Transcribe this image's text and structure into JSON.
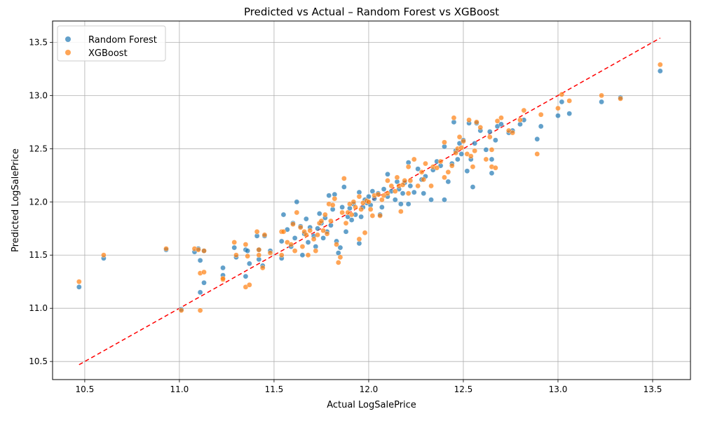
{
  "chart_data": {
    "type": "scatter",
    "title": "Predicted vs Actual – Random Forest vs XGBoost",
    "xlabel": "Actual LogSalePrice",
    "ylabel": "Predicted LogSalePrice",
    "xlim": [
      10.33,
      13.7
    ],
    "ylim": [
      10.33,
      13.7
    ],
    "xticks": [
      10.5,
      11.0,
      11.5,
      12.0,
      12.5,
      13.0,
      13.5
    ],
    "yticks": [
      10.5,
      11.0,
      11.5,
      12.0,
      12.5,
      13.0,
      13.5
    ],
    "grid": true,
    "legend_position": "top-left",
    "reference_line": {
      "from": [
        10.47,
        10.47
      ],
      "to": [
        13.54,
        13.54
      ],
      "style": "dashed",
      "color": "#ff0000"
    },
    "series": [
      {
        "name": "Random Forest",
        "color": "#1f77b4",
        "points": [
          [
            10.47,
            11.2
          ],
          [
            10.6,
            11.47
          ],
          [
            10.93,
            11.55
          ],
          [
            11.01,
            10.99
          ],
          [
            11.08,
            11.53
          ],
          [
            11.1,
            11.56
          ],
          [
            11.11,
            11.45
          ],
          [
            11.11,
            11.15
          ],
          [
            11.13,
            11.24
          ],
          [
            11.13,
            11.54
          ],
          [
            11.23,
            11.38
          ],
          [
            11.23,
            11.31
          ],
          [
            11.29,
            11.57
          ],
          [
            11.3,
            11.48
          ],
          [
            11.35,
            11.3
          ],
          [
            11.35,
            11.55
          ],
          [
            11.36,
            11.54
          ],
          [
            11.37,
            11.42
          ],
          [
            11.41,
            11.68
          ],
          [
            11.42,
            11.46
          ],
          [
            11.42,
            11.55
          ],
          [
            11.44,
            11.4
          ],
          [
            11.45,
            11.68
          ],
          [
            11.48,
            11.54
          ],
          [
            11.54,
            11.63
          ],
          [
            11.54,
            11.47
          ],
          [
            11.55,
            11.88
          ],
          [
            11.57,
            11.74
          ],
          [
            11.59,
            11.58
          ],
          [
            11.6,
            11.8
          ],
          [
            11.61,
            11.66
          ],
          [
            11.62,
            12.0
          ],
          [
            11.64,
            11.77
          ],
          [
            11.65,
            11.5
          ],
          [
            11.66,
            11.7
          ],
          [
            11.67,
            11.84
          ],
          [
            11.68,
            11.62
          ],
          [
            11.69,
            11.76
          ],
          [
            11.71,
            11.68
          ],
          [
            11.72,
            11.58
          ],
          [
            11.73,
            11.75
          ],
          [
            11.74,
            11.89
          ],
          [
            11.75,
            11.8
          ],
          [
            11.76,
            11.66
          ],
          [
            11.77,
            11.85
          ],
          [
            11.78,
            11.72
          ],
          [
            11.79,
            12.06
          ],
          [
            11.8,
            11.78
          ],
          [
            11.81,
            11.93
          ],
          [
            11.82,
            12.07
          ],
          [
            11.83,
            11.63
          ],
          [
            11.84,
            11.52
          ],
          [
            11.85,
            11.57
          ],
          [
            11.86,
            11.95
          ],
          [
            11.87,
            12.14
          ],
          [
            11.88,
            11.72
          ],
          [
            11.89,
            11.86
          ],
          [
            11.9,
            11.94
          ],
          [
            11.91,
            11.83
          ],
          [
            11.92,
            11.98
          ],
          [
            11.93,
            11.88
          ],
          [
            11.95,
            11.61
          ],
          [
            11.95,
            12.09
          ],
          [
            11.96,
            11.86
          ],
          [
            11.97,
            11.95
          ],
          [
            11.98,
            12.02
          ],
          [
            11.99,
            11.99
          ],
          [
            12.0,
            12.05
          ],
          [
            12.01,
            11.97
          ],
          [
            12.02,
            12.1
          ],
          [
            12.03,
            12.03
          ],
          [
            12.05,
            12.08
          ],
          [
            12.06,
            11.88
          ],
          [
            12.07,
            11.95
          ],
          [
            12.08,
            12.12
          ],
          [
            12.1,
            12.26
          ],
          [
            12.1,
            12.05
          ],
          [
            12.12,
            12.1
          ],
          [
            12.14,
            12.02
          ],
          [
            12.15,
            12.19
          ],
          [
            12.16,
            12.12
          ],
          [
            12.17,
            11.98
          ],
          [
            12.18,
            12.08
          ],
          [
            12.19,
            12.18
          ],
          [
            12.21,
            12.37
          ],
          [
            12.21,
            11.98
          ],
          [
            12.22,
            12.15
          ],
          [
            12.24,
            12.09
          ],
          [
            12.26,
            12.31
          ],
          [
            12.28,
            12.21
          ],
          [
            12.29,
            12.08
          ],
          [
            12.3,
            12.24
          ],
          [
            12.33,
            12.02
          ],
          [
            12.34,
            12.3
          ],
          [
            12.36,
            12.38
          ],
          [
            12.38,
            12.34
          ],
          [
            12.4,
            12.02
          ],
          [
            12.4,
            12.52
          ],
          [
            12.42,
            12.19
          ],
          [
            12.44,
            12.36
          ],
          [
            12.45,
            12.75
          ],
          [
            12.46,
            12.48
          ],
          [
            12.47,
            12.4
          ],
          [
            12.48,
            12.55
          ],
          [
            12.49,
            12.45
          ],
          [
            12.5,
            12.58
          ],
          [
            12.52,
            12.29
          ],
          [
            12.53,
            12.74
          ],
          [
            12.54,
            12.4
          ],
          [
            12.55,
            12.14
          ],
          [
            12.56,
            12.55
          ],
          [
            12.57,
            12.74
          ],
          [
            12.59,
            12.67
          ],
          [
            12.62,
            12.49
          ],
          [
            12.64,
            12.66
          ],
          [
            12.65,
            12.4
          ],
          [
            12.65,
            12.27
          ],
          [
            12.67,
            12.58
          ],
          [
            12.68,
            12.71
          ],
          [
            12.7,
            12.73
          ],
          [
            12.74,
            12.65
          ],
          [
            12.76,
            12.67
          ],
          [
            12.8,
            12.73
          ],
          [
            12.82,
            12.77
          ],
          [
            12.89,
            12.59
          ],
          [
            12.91,
            12.71
          ],
          [
            13.0,
            12.81
          ],
          [
            13.02,
            12.94
          ],
          [
            13.06,
            12.83
          ],
          [
            13.23,
            12.94
          ],
          [
            13.33,
            12.98
          ],
          [
            13.54,
            13.23
          ]
        ]
      },
      {
        "name": "XGBoost",
        "color": "#ff7f0e",
        "points": [
          [
            10.47,
            11.25
          ],
          [
            10.6,
            11.5
          ],
          [
            10.93,
            11.56
          ],
          [
            11.01,
            10.98
          ],
          [
            11.08,
            11.56
          ],
          [
            11.1,
            11.55
          ],
          [
            11.11,
            11.33
          ],
          [
            11.11,
            10.98
          ],
          [
            11.13,
            11.34
          ],
          [
            11.13,
            11.54
          ],
          [
            11.23,
            11.27
          ],
          [
            11.23,
            11.28
          ],
          [
            11.29,
            11.62
          ],
          [
            11.3,
            11.5
          ],
          [
            11.35,
            11.2
          ],
          [
            11.35,
            11.6
          ],
          [
            11.36,
            11.49
          ],
          [
            11.37,
            11.22
          ],
          [
            11.41,
            11.72
          ],
          [
            11.42,
            11.5
          ],
          [
            11.42,
            11.55
          ],
          [
            11.44,
            11.38
          ],
          [
            11.45,
            11.69
          ],
          [
            11.48,
            11.52
          ],
          [
            11.54,
            11.72
          ],
          [
            11.54,
            11.5
          ],
          [
            11.55,
            11.72
          ],
          [
            11.57,
            11.62
          ],
          [
            11.59,
            11.6
          ],
          [
            11.6,
            11.79
          ],
          [
            11.61,
            11.54
          ],
          [
            11.62,
            11.9
          ],
          [
            11.64,
            11.76
          ],
          [
            11.65,
            11.58
          ],
          [
            11.66,
            11.72
          ],
          [
            11.67,
            11.69
          ],
          [
            11.68,
            11.5
          ],
          [
            11.69,
            11.73
          ],
          [
            11.71,
            11.65
          ],
          [
            11.72,
            11.54
          ],
          [
            11.73,
            11.69
          ],
          [
            11.74,
            11.8
          ],
          [
            11.75,
            11.82
          ],
          [
            11.76,
            11.73
          ],
          [
            11.77,
            11.88
          ],
          [
            11.78,
            11.7
          ],
          [
            11.79,
            11.98
          ],
          [
            11.8,
            11.82
          ],
          [
            11.81,
            11.97
          ],
          [
            11.82,
            12.03
          ],
          [
            11.83,
            11.6
          ],
          [
            11.84,
            11.43
          ],
          [
            11.85,
            11.48
          ],
          [
            11.86,
            11.9
          ],
          [
            11.87,
            12.22
          ],
          [
            11.88,
            11.8
          ],
          [
            11.89,
            11.9
          ],
          [
            11.9,
            11.98
          ],
          [
            11.91,
            11.88
          ],
          [
            11.92,
            12.0
          ],
          [
            11.93,
            11.95
          ],
          [
            11.95,
            11.65
          ],
          [
            11.95,
            12.05
          ],
          [
            11.96,
            11.93
          ],
          [
            11.97,
            11.99
          ],
          [
            11.98,
            11.71
          ],
          [
            11.99,
            12.01
          ],
          [
            12.0,
            12.0
          ],
          [
            12.01,
            11.93
          ],
          [
            12.02,
            11.87
          ],
          [
            12.03,
            12.06
          ],
          [
            12.05,
            12.07
          ],
          [
            12.06,
            11.87
          ],
          [
            12.07,
            12.02
          ],
          [
            12.08,
            12.06
          ],
          [
            12.1,
            12.2
          ],
          [
            12.1,
            12.08
          ],
          [
            12.12,
            12.15
          ],
          [
            12.14,
            12.1
          ],
          [
            12.15,
            12.23
          ],
          [
            12.16,
            12.15
          ],
          [
            12.17,
            11.91
          ],
          [
            12.18,
            12.16
          ],
          [
            12.19,
            12.2
          ],
          [
            12.21,
            12.33
          ],
          [
            12.21,
            12.08
          ],
          [
            12.22,
            12.2
          ],
          [
            12.24,
            12.4
          ],
          [
            12.26,
            12.15
          ],
          [
            12.28,
            12.28
          ],
          [
            12.29,
            12.21
          ],
          [
            12.3,
            12.36
          ],
          [
            12.33,
            12.15
          ],
          [
            12.34,
            12.33
          ],
          [
            12.36,
            12.32
          ],
          [
            12.38,
            12.38
          ],
          [
            12.4,
            12.23
          ],
          [
            12.4,
            12.56
          ],
          [
            12.42,
            12.28
          ],
          [
            12.44,
            12.34
          ],
          [
            12.45,
            12.79
          ],
          [
            12.46,
            12.46
          ],
          [
            12.47,
            12.5
          ],
          [
            12.48,
            12.61
          ],
          [
            12.49,
            12.51
          ],
          [
            12.5,
            12.57
          ],
          [
            12.52,
            12.45
          ],
          [
            12.53,
            12.77
          ],
          [
            12.54,
            12.43
          ],
          [
            12.55,
            12.33
          ],
          [
            12.56,
            12.48
          ],
          [
            12.57,
            12.75
          ],
          [
            12.59,
            12.7
          ],
          [
            12.62,
            12.4
          ],
          [
            12.64,
            12.61
          ],
          [
            12.65,
            12.49
          ],
          [
            12.65,
            12.33
          ],
          [
            12.67,
            12.32
          ],
          [
            12.68,
            12.76
          ],
          [
            12.7,
            12.79
          ],
          [
            12.74,
            12.67
          ],
          [
            12.76,
            12.65
          ],
          [
            12.8,
            12.77
          ],
          [
            12.82,
            12.86
          ],
          [
            12.89,
            12.45
          ],
          [
            12.91,
            12.82
          ],
          [
            13.0,
            12.88
          ],
          [
            13.02,
            13.01
          ],
          [
            13.06,
            12.95
          ],
          [
            13.23,
            13.0
          ],
          [
            13.33,
            12.97
          ],
          [
            13.54,
            13.29
          ]
        ]
      }
    ]
  }
}
